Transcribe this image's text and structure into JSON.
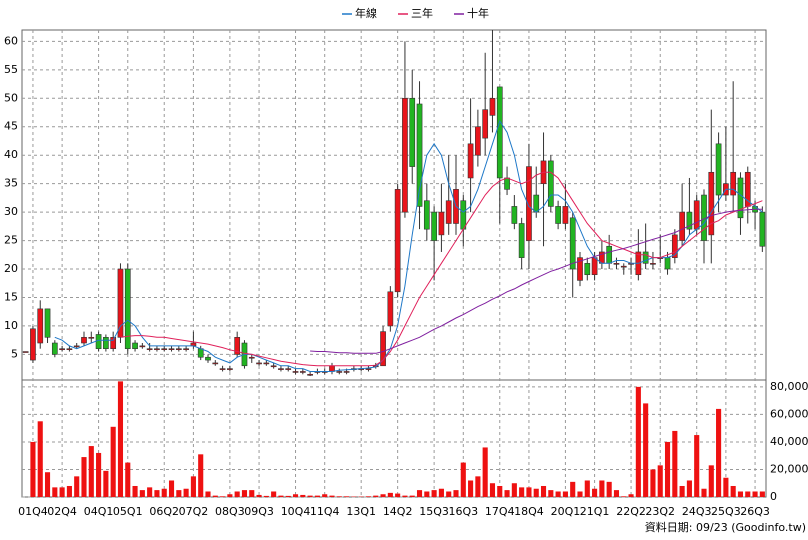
{
  "chart_data": {
    "type": "candlestick",
    "categories": [
      null,
      "01Q4",
      null,
      null,
      null,
      "02Q4",
      null,
      null,
      null,
      null,
      "04Q1",
      null,
      null,
      null,
      "05Q1",
      null,
      null,
      null,
      null,
      "06Q2",
      null,
      null,
      null,
      "07Q2",
      null,
      null,
      null,
      null,
      "08Q3",
      null,
      null,
      null,
      "09Q3",
      null,
      null,
      null,
      null,
      "10Q4",
      null,
      null,
      null,
      "11Q4",
      null,
      null,
      null,
      null,
      "13Q1",
      null,
      null,
      null,
      null,
      "14Q2",
      null,
      null,
      null,
      null,
      "15Q3",
      null,
      null,
      null,
      "16Q3",
      null,
      null,
      null,
      null,
      "17Q4",
      null,
      null,
      null,
      "18Q4",
      null,
      null,
      null,
      null,
      "20Q1",
      null,
      null,
      null,
      "21Q1",
      null,
      null,
      null,
      null,
      "22Q2",
      null,
      null,
      null,
      "23Q2",
      null,
      null,
      null,
      null,
      "24Q3",
      null,
      null,
      null,
      "25Q3",
      null,
      null,
      null,
      "26Q3",
      null
    ],
    "open": [
      5.5,
      4,
      7,
      13,
      7,
      6,
      6,
      6.5,
      7,
      8,
      8.5,
      8,
      6,
      8,
      20,
      7,
      6.5,
      6,
      6,
      6,
      6,
      6,
      6,
      6.5,
      6,
      4.5,
      3.5,
      2.5,
      2.5,
      5,
      7,
      4.5,
      3.5,
      3.5,
      3,
      2.5,
      2.5,
      2,
      2,
      1.5,
      2,
      2,
      2,
      2,
      2,
      2.5,
      2.5,
      2.5,
      3,
      3,
      10,
      16,
      30,
      50,
      49,
      32,
      30,
      26,
      28,
      28,
      32,
      36,
      40,
      43,
      47,
      52,
      36,
      31,
      28,
      25,
      33,
      35,
      39,
      31,
      28,
      29,
      18,
      21,
      19,
      21,
      24,
      21,
      20.5,
      21,
      19,
      23,
      21,
      22,
      22,
      22,
      25,
      30,
      27,
      33,
      26,
      42,
      33,
      33,
      36,
      31,
      31,
      30
    ],
    "high": [
      5.5,
      10,
      14.5,
      13,
      7.5,
      6.5,
      6.5,
      7,
      9,
      9,
      9,
      8.5,
      9,
      21,
      21,
      7.5,
      7,
      7,
      6.5,
      6.5,
      6.5,
      6.5,
      6.5,
      9,
      6.5,
      5,
      4,
      3,
      3,
      9,
      7.5,
      5,
      4,
      4,
      3.5,
      3,
      3,
      2.5,
      2.5,
      2,
      2.5,
      2.5,
      3.5,
      2.5,
      2.5,
      3,
      3,
      3,
      3.5,
      10,
      17,
      35,
      60,
      55,
      53,
      35,
      31,
      35,
      40,
      40,
      33,
      50,
      48,
      58,
      62,
      52,
      38,
      33,
      29,
      42,
      38,
      44,
      40,
      32,
      35,
      30,
      23,
      22,
      23,
      25,
      26,
      22,
      21,
      22,
      27,
      28,
      23,
      26,
      23,
      27,
      35,
      36,
      33,
      34,
      48,
      44,
      45,
      53,
      37,
      38,
      32,
      31
    ],
    "low": [
      5.5,
      3.5,
      6,
      7,
      4.5,
      5.5,
      5.5,
      6,
      6.5,
      7,
      5.5,
      5.5,
      5.5,
      7,
      5,
      5.5,
      6,
      5.5,
      5.5,
      5.5,
      5.5,
      5.5,
      5.5,
      6,
      4,
      3.5,
      3,
      2,
      2,
      4.5,
      2.5,
      3.5,
      3,
      3,
      2.5,
      2,
      2,
      1.5,
      1.5,
      1.2,
      1.5,
      1.5,
      1.5,
      1.5,
      1.5,
      2,
      2,
      2,
      2.5,
      3,
      9,
      15,
      29,
      35,
      27,
      25,
      18,
      23,
      26,
      26,
      24,
      30,
      38,
      40,
      44,
      28,
      33,
      27,
      20,
      20,
      29,
      24,
      30,
      27,
      27,
      15,
      17,
      18,
      18,
      20,
      20,
      20,
      19,
      19,
      18,
      20,
      20,
      21,
      19,
      21,
      24,
      26,
      26,
      21,
      21,
      30,
      32,
      30,
      26,
      28,
      27,
      23
    ],
    "close": [
      5.5,
      9.5,
      13,
      8,
      5,
      6,
      6,
      6.5,
      8,
      8,
      6,
      6,
      8,
      20,
      6,
      6,
      6.5,
      6,
      6,
      6,
      6,
      6,
      6,
      7,
      4.5,
      4,
      3.5,
      2.5,
      2.5,
      8,
      3,
      4.5,
      3.5,
      3.5,
      3,
      2.5,
      2.5,
      2,
      2,
      1.5,
      2,
      2,
      3,
      2,
      2,
      2.5,
      2.5,
      2.5,
      3,
      9,
      16,
      34,
      50,
      38,
      31,
      27,
      25,
      30,
      32,
      34,
      27,
      42,
      45,
      48,
      50,
      36,
      34,
      28,
      22,
      38,
      30,
      39,
      31,
      28,
      31,
      20,
      22,
      19,
      22,
      23,
      21,
      21,
      20.5,
      21,
      23,
      21,
      21,
      22,
      20,
      26,
      30,
      27,
      32,
      25,
      37,
      33,
      35,
      37,
      29,
      37,
      30,
      24
    ],
    "up_color": "#e8141b",
    "down_color": "#22b422",
    "ylim": [
      0.5,
      62
    ],
    "yticks": [
      5,
      10,
      15,
      20,
      25,
      30,
      35,
      40,
      45,
      50,
      55,
      60
    ],
    "grid": true,
    "series": [
      {
        "name": "年線",
        "color": "#1e78c8",
        "values": [
          null,
          null,
          null,
          null,
          8,
          7.5,
          6.5,
          6,
          6.5,
          7,
          7.5,
          7.5,
          7.5,
          10,
          11,
          10,
          8,
          6.5,
          6.5,
          6.5,
          6.5,
          6.5,
          6.5,
          6.5,
          6,
          5.5,
          4.5,
          4,
          3.5,
          4.5,
          5,
          5,
          4.5,
          4,
          3.5,
          3,
          3,
          2.5,
          2.5,
          2,
          2,
          2,
          2,
          2.2,
          2.3,
          2.4,
          2.5,
          2.6,
          2.8,
          4,
          6,
          10,
          17,
          26,
          34,
          40,
          42,
          40,
          35,
          31,
          30,
          31,
          34,
          38,
          42,
          46,
          44,
          40,
          34,
          31,
          30,
          31,
          33,
          33,
          32,
          30,
          27,
          24,
          22,
          21,
          21,
          21.5,
          21.5,
          21,
          21,
          21.5,
          22,
          22,
          22,
          22.5,
          24,
          26,
          27,
          28,
          30,
          32,
          34,
          34,
          33,
          32,
          31,
          30
        ]
      },
      {
        "name": "三年",
        "color": "#e0205a",
        "values": [
          null,
          null,
          null,
          null,
          null,
          null,
          null,
          null,
          null,
          null,
          null,
          null,
          null,
          8,
          8.2,
          8.3,
          8.3,
          8.2,
          8,
          8,
          7.8,
          7.6,
          7.4,
          7.2,
          7,
          6.8,
          6.5,
          6.2,
          5.8,
          5.5,
          5.2,
          5,
          4.7,
          4.4,
          4.1,
          3.8,
          3.6,
          3.4,
          3.2,
          3.1,
          3,
          3,
          3,
          3,
          3,
          3,
          3,
          3,
          3.1,
          4,
          5.5,
          7.5,
          10,
          12.5,
          15,
          17,
          19,
          21,
          23,
          25,
          27,
          29,
          31,
          33,
          34.5,
          35.5,
          36,
          35.5,
          35,
          35.5,
          36.5,
          37,
          37,
          36,
          34,
          32,
          30,
          28,
          26.5,
          25,
          24.5,
          24,
          23.5,
          23,
          22.5,
          22.5,
          22,
          22,
          22.5,
          23,
          24,
          25,
          26,
          27,
          28,
          28.5,
          29.5,
          30,
          30.5,
          31,
          31.5,
          32
        ]
      },
      {
        "name": "十年",
        "color": "#8020a0",
        "values": [
          null,
          null,
          null,
          null,
          null,
          null,
          null,
          null,
          null,
          null,
          null,
          null,
          null,
          null,
          null,
          null,
          null,
          null,
          null,
          null,
          null,
          null,
          null,
          null,
          null,
          null,
          null,
          null,
          null,
          null,
          null,
          null,
          null,
          null,
          null,
          null,
          null,
          null,
          null,
          5.6,
          5.5,
          5.5,
          5.4,
          5.3,
          5.3,
          5.2,
          5.2,
          5.2,
          5.2,
          5.5,
          6,
          6.5,
          7,
          7.5,
          8,
          8.7,
          9.4,
          10,
          10.7,
          11.4,
          12,
          12.7,
          13.4,
          14,
          14.7,
          15.3,
          16,
          16.5,
          17.2,
          17.8,
          18.4,
          19,
          19.6,
          20,
          20.5,
          21,
          21.4,
          21.8,
          22.2,
          22.6,
          23,
          23.3,
          23.6,
          24,
          24.4,
          24.8,
          25.2,
          25.6,
          26,
          26.4,
          27,
          27.6,
          28.2,
          28.8,
          29.4,
          29.7,
          30,
          30.2,
          30.3,
          30.4,
          30.5,
          30.5
        ]
      }
    ],
    "volume": {
      "color": "#ee1111",
      "ylim": [
        0,
        85000
      ],
      "yticks": [
        0,
        {
          "value": 20000,
          "label": "20,000"
        },
        {
          "value": 40000,
          "label": "40,000"
        },
        {
          "value": 60000,
          "label": "60,000"
        },
        {
          "value": 80000,
          "label": "80,000"
        }
      ],
      "values": [
        0,
        40000,
        55000,
        18000,
        7000,
        7000,
        8000,
        15000,
        29000,
        37000,
        32000,
        19000,
        51000,
        84000,
        25000,
        8000,
        5000,
        7000,
        5000,
        6000,
        12000,
        5000,
        6000,
        15000,
        31000,
        4000,
        1000,
        500,
        2000,
        4000,
        5000,
        5000,
        1500,
        800,
        4000,
        1000,
        800,
        2000,
        1500,
        1000,
        1000,
        2000,
        1000,
        500,
        500,
        300,
        300,
        500,
        1000,
        2000,
        3000,
        2500,
        1000,
        1000,
        5000,
        4000,
        5000,
        6000,
        4000,
        5000,
        25000,
        12000,
        15000,
        36000,
        10000,
        8000,
        5000,
        10000,
        7000,
        7000,
        6000,
        8000,
        5000,
        4000,
        4000,
        11000,
        4000,
        12000,
        6000,
        12000,
        11000,
        5000,
        500,
        2000,
        80000,
        68000,
        20000,
        23000,
        40000,
        48000,
        8000,
        12000,
        45000,
        6000,
        23000,
        64000,
        14000,
        8000,
        4000,
        4000,
        4000,
        4000
      ]
    },
    "annotation": "資料日期: 09/23 (Goodinfo.tw)"
  }
}
